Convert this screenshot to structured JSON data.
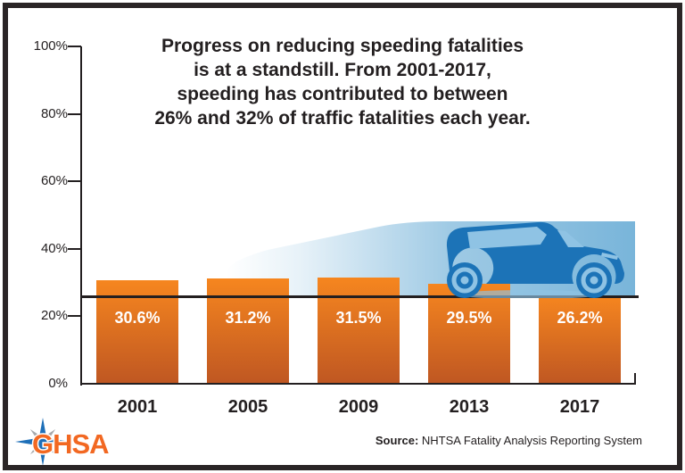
{
  "title_lines": [
    "Progress on reducing speeding fatalities",
    "is at a standstill. From 2001-2017,",
    "speeding has contributed to between",
    "26% and 32% of traffic fatalities each year."
  ],
  "chart_data": {
    "type": "bar",
    "title": "Progress on reducing speeding fatalities is at a standstill. From 2001-2017, speeding has contributed to between 26% and 32% of traffic fatalities each year.",
    "categories": [
      "2001",
      "2005",
      "2009",
      "2013",
      "2017"
    ],
    "values": [
      30.6,
      31.2,
      31.5,
      29.5,
      26.2
    ],
    "bar_labels": [
      "30.6%",
      "31.2%",
      "31.5%",
      "29.5%",
      "26.2%"
    ],
    "y_ticks": [
      "100%",
      "80%",
      "60%",
      "40%",
      "20%",
      "0%"
    ],
    "ylim": [
      0,
      100
    ],
    "reference_line_value": 26.2,
    "grid": "off",
    "legend": "none",
    "annotation": "blue car with motion-blur trail riding along the 26.2% reference line"
  },
  "footer": {
    "logo_text": "GHSA",
    "source_label": "Source:",
    "source_text": " NHTSA Fatality Analysis Reporting System"
  },
  "colors": {
    "bar_top": "#f6861f",
    "bar_bottom": "#bf5722",
    "axis": "#231f20",
    "text": "#231f20",
    "car_blue": "#1c73b7",
    "car_light_blue": "#8fc3e4",
    "trail_blue": "#79b5da",
    "logo_orange": "#f26822",
    "star_blue": "#1e6fb8",
    "star_gray": "#a6a8ab",
    "border": "#2a2526"
  }
}
